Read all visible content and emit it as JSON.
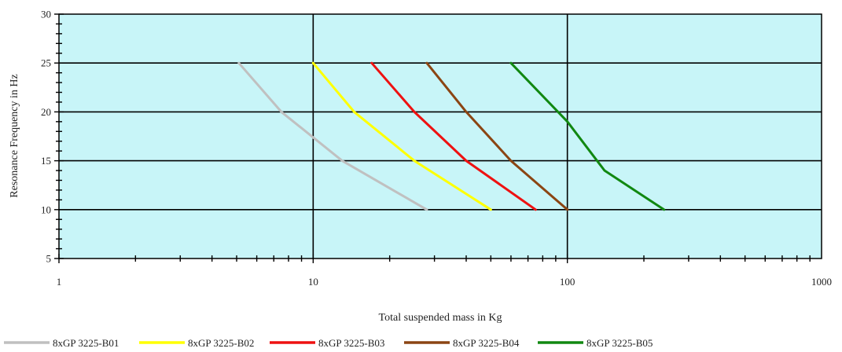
{
  "chart_data": {
    "type": "line",
    "title": "",
    "xlabel": "Total suspended mass in Kg",
    "ylabel": "Resonance Frequency in Hz",
    "x_scale": "log",
    "xlim": [
      1,
      1000
    ],
    "ylim": [
      5,
      30
    ],
    "x_ticks": [
      1,
      10,
      100,
      1000
    ],
    "x_tick_labels": [
      "1",
      "10",
      "100",
      "1000"
    ],
    "y_ticks": [
      5,
      10,
      15,
      20,
      25,
      30
    ],
    "y_tick_labels": [
      "5",
      "10",
      "15",
      "20",
      "25",
      "30"
    ],
    "grid": true,
    "legend_position": "bottom",
    "background_color": "#c8f5f8",
    "series": [
      {
        "name": "8xGP 3225-B01",
        "color": "#c0c0c0",
        "x": [
          5.1,
          7.5,
          13,
          28
        ],
        "y": [
          25,
          20,
          15,
          10
        ]
      },
      {
        "name": "8xGP 3225-B02",
        "color": "#ffff00",
        "x": [
          10,
          14.5,
          25,
          50
        ],
        "y": [
          25,
          20,
          15,
          10
        ]
      },
      {
        "name": "8xGP 3225-B03",
        "color": "#ee1111",
        "x": [
          17,
          25,
          40,
          75
        ],
        "y": [
          25,
          20,
          15,
          10
        ]
      },
      {
        "name": "8xGP 3225-B04",
        "color": "#8b4513",
        "x": [
          28,
          40,
          60,
          100
        ],
        "y": [
          25,
          20,
          15,
          10
        ]
      },
      {
        "name": "8xGP 3225-B05",
        "color": "#118811",
        "x": [
          60,
          100,
          140,
          240
        ],
        "y": [
          25,
          19,
          14,
          10
        ]
      }
    ]
  }
}
